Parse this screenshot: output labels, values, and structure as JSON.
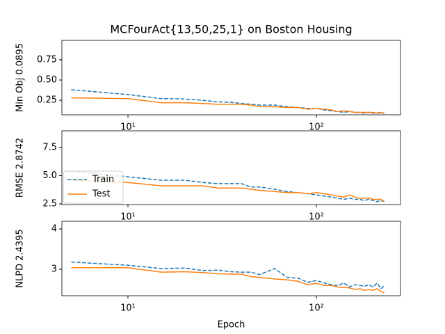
{
  "chart_data": [
    {
      "type": "line",
      "title": "MCFourAct{13,50,25,1} on Boston Housing",
      "ylabel": "Min Obj 0.0895",
      "xscale": "log",
      "x": [
        5,
        10,
        15,
        20,
        25,
        30,
        35,
        40,
        45,
        50,
        60,
        70,
        80,
        90,
        100,
        110,
        120,
        130,
        140,
        150,
        160,
        170,
        180,
        190,
        200,
        210,
        220,
        230
      ],
      "xlim": [
        4.46,
        279.6
      ],
      "xticks": [
        {
          "value": 10,
          "label": "10¹"
        },
        {
          "value": 100,
          "label": "10²"
        }
      ],
      "ylim": [
        0.07,
        0.99
      ],
      "yticks": [
        0.25,
        {
          "value": 0.5,
          "label": "0.50"
        },
        0.75
      ],
      "series": [
        {
          "name": "Train",
          "color": "#1f77b4",
          "linestyle": "dashed",
          "values": [
            0.38,
            0.32,
            0.27,
            0.265,
            0.25,
            0.23,
            0.225,
            0.21,
            0.2,
            0.19,
            0.19,
            0.17,
            0.16,
            0.15,
            0.15,
            0.13,
            0.12,
            0.11,
            0.1,
            0.11,
            0.1,
            0.1,
            0.09,
            0.1,
            0.09,
            0.1,
            0.09,
            0.09
          ]
        },
        {
          "name": "Test",
          "color": "#ff7f0e",
          "linestyle": "solid",
          "values": [
            0.28,
            0.27,
            0.22,
            0.22,
            0.21,
            0.2,
            0.2,
            0.2,
            0.19,
            0.17,
            0.17,
            0.16,
            0.16,
            0.14,
            0.15,
            0.14,
            0.13,
            0.11,
            0.12,
            0.11,
            0.1,
            0.1,
            0.1,
            0.1,
            0.1,
            0.09,
            0.1,
            0.09
          ]
        }
      ]
    },
    {
      "type": "line",
      "ylabel": "RMSE 2.8742",
      "xscale": "log",
      "legend": "lower left",
      "x": [
        5,
        10,
        15,
        20,
        25,
        30,
        35,
        40,
        45,
        50,
        60,
        70,
        80,
        90,
        100,
        110,
        120,
        130,
        140,
        150,
        160,
        170,
        180,
        190,
        200,
        210,
        220,
        230
      ],
      "xlim": [
        4.46,
        279.6
      ],
      "xticks": [
        {
          "value": 10,
          "label": "10¹"
        },
        {
          "value": 100,
          "label": "10²"
        }
      ],
      "ylim": [
        2.44,
        8.98
      ],
      "yticks": [
        2.5,
        {
          "value": 5,
          "label": "5.0"
        },
        7.5
      ],
      "series": [
        {
          "name": "Train",
          "color": "#1f77b4",
          "linestyle": "dashed",
          "values": [
            5.4,
            4.9,
            4.6,
            4.6,
            4.4,
            4.3,
            4.3,
            4.3,
            4.0,
            4.0,
            3.8,
            3.6,
            3.5,
            3.4,
            3.3,
            3.2,
            3.1,
            3.0,
            2.9,
            3.0,
            2.9,
            2.9,
            2.8,
            2.9,
            2.8,
            2.7,
            2.8,
            2.7
          ]
        },
        {
          "name": "Test",
          "color": "#ff7f0e",
          "linestyle": "solid",
          "values": [
            4.6,
            4.4,
            4.1,
            4.1,
            4.1,
            3.9,
            3.9,
            3.9,
            3.8,
            3.7,
            3.6,
            3.5,
            3.5,
            3.4,
            3.5,
            3.4,
            3.3,
            3.2,
            3.1,
            3.3,
            3.1,
            3.0,
            3.0,
            3.0,
            2.9,
            2.9,
            2.9,
            2.7
          ]
        }
      ]
    },
    {
      "type": "line",
      "ylabel": "NLPD 2.4395",
      "xlabel": "Epoch",
      "xscale": "log",
      "x": [
        5,
        10,
        15,
        20,
        25,
        30,
        35,
        40,
        45,
        50,
        60,
        70,
        80,
        90,
        100,
        110,
        120,
        130,
        140,
        150,
        160,
        170,
        180,
        190,
        200,
        210,
        220,
        230
      ],
      "xlim": [
        4.46,
        279.6
      ],
      "xticks": [
        {
          "value": 10,
          "label": "10¹"
        },
        {
          "value": 100,
          "label": "10²"
        }
      ],
      "ylim": [
        2.345,
        4.19
      ],
      "yticks": [
        3,
        4
      ],
      "series": [
        {
          "name": "Train",
          "color": "#1f77b4",
          "linestyle": "dashed",
          "values": [
            3.18,
            3.1,
            3.02,
            3.03,
            2.97,
            2.98,
            2.94,
            2.93,
            2.93,
            2.87,
            3.02,
            2.8,
            2.78,
            2.68,
            2.72,
            2.66,
            2.62,
            2.6,
            2.66,
            2.56,
            2.62,
            2.6,
            2.58,
            2.62,
            2.56,
            2.66,
            2.52,
            2.6
          ]
        },
        {
          "name": "Test",
          "color": "#ff7f0e",
          "linestyle": "solid",
          "values": [
            3.04,
            3.04,
            2.93,
            2.94,
            2.92,
            2.89,
            2.88,
            2.88,
            2.82,
            2.8,
            2.76,
            2.74,
            2.7,
            2.62,
            2.65,
            2.6,
            2.6,
            2.56,
            2.55,
            2.54,
            2.5,
            2.52,
            2.48,
            2.5,
            2.48,
            2.52,
            2.45,
            2.42
          ]
        }
      ]
    }
  ]
}
